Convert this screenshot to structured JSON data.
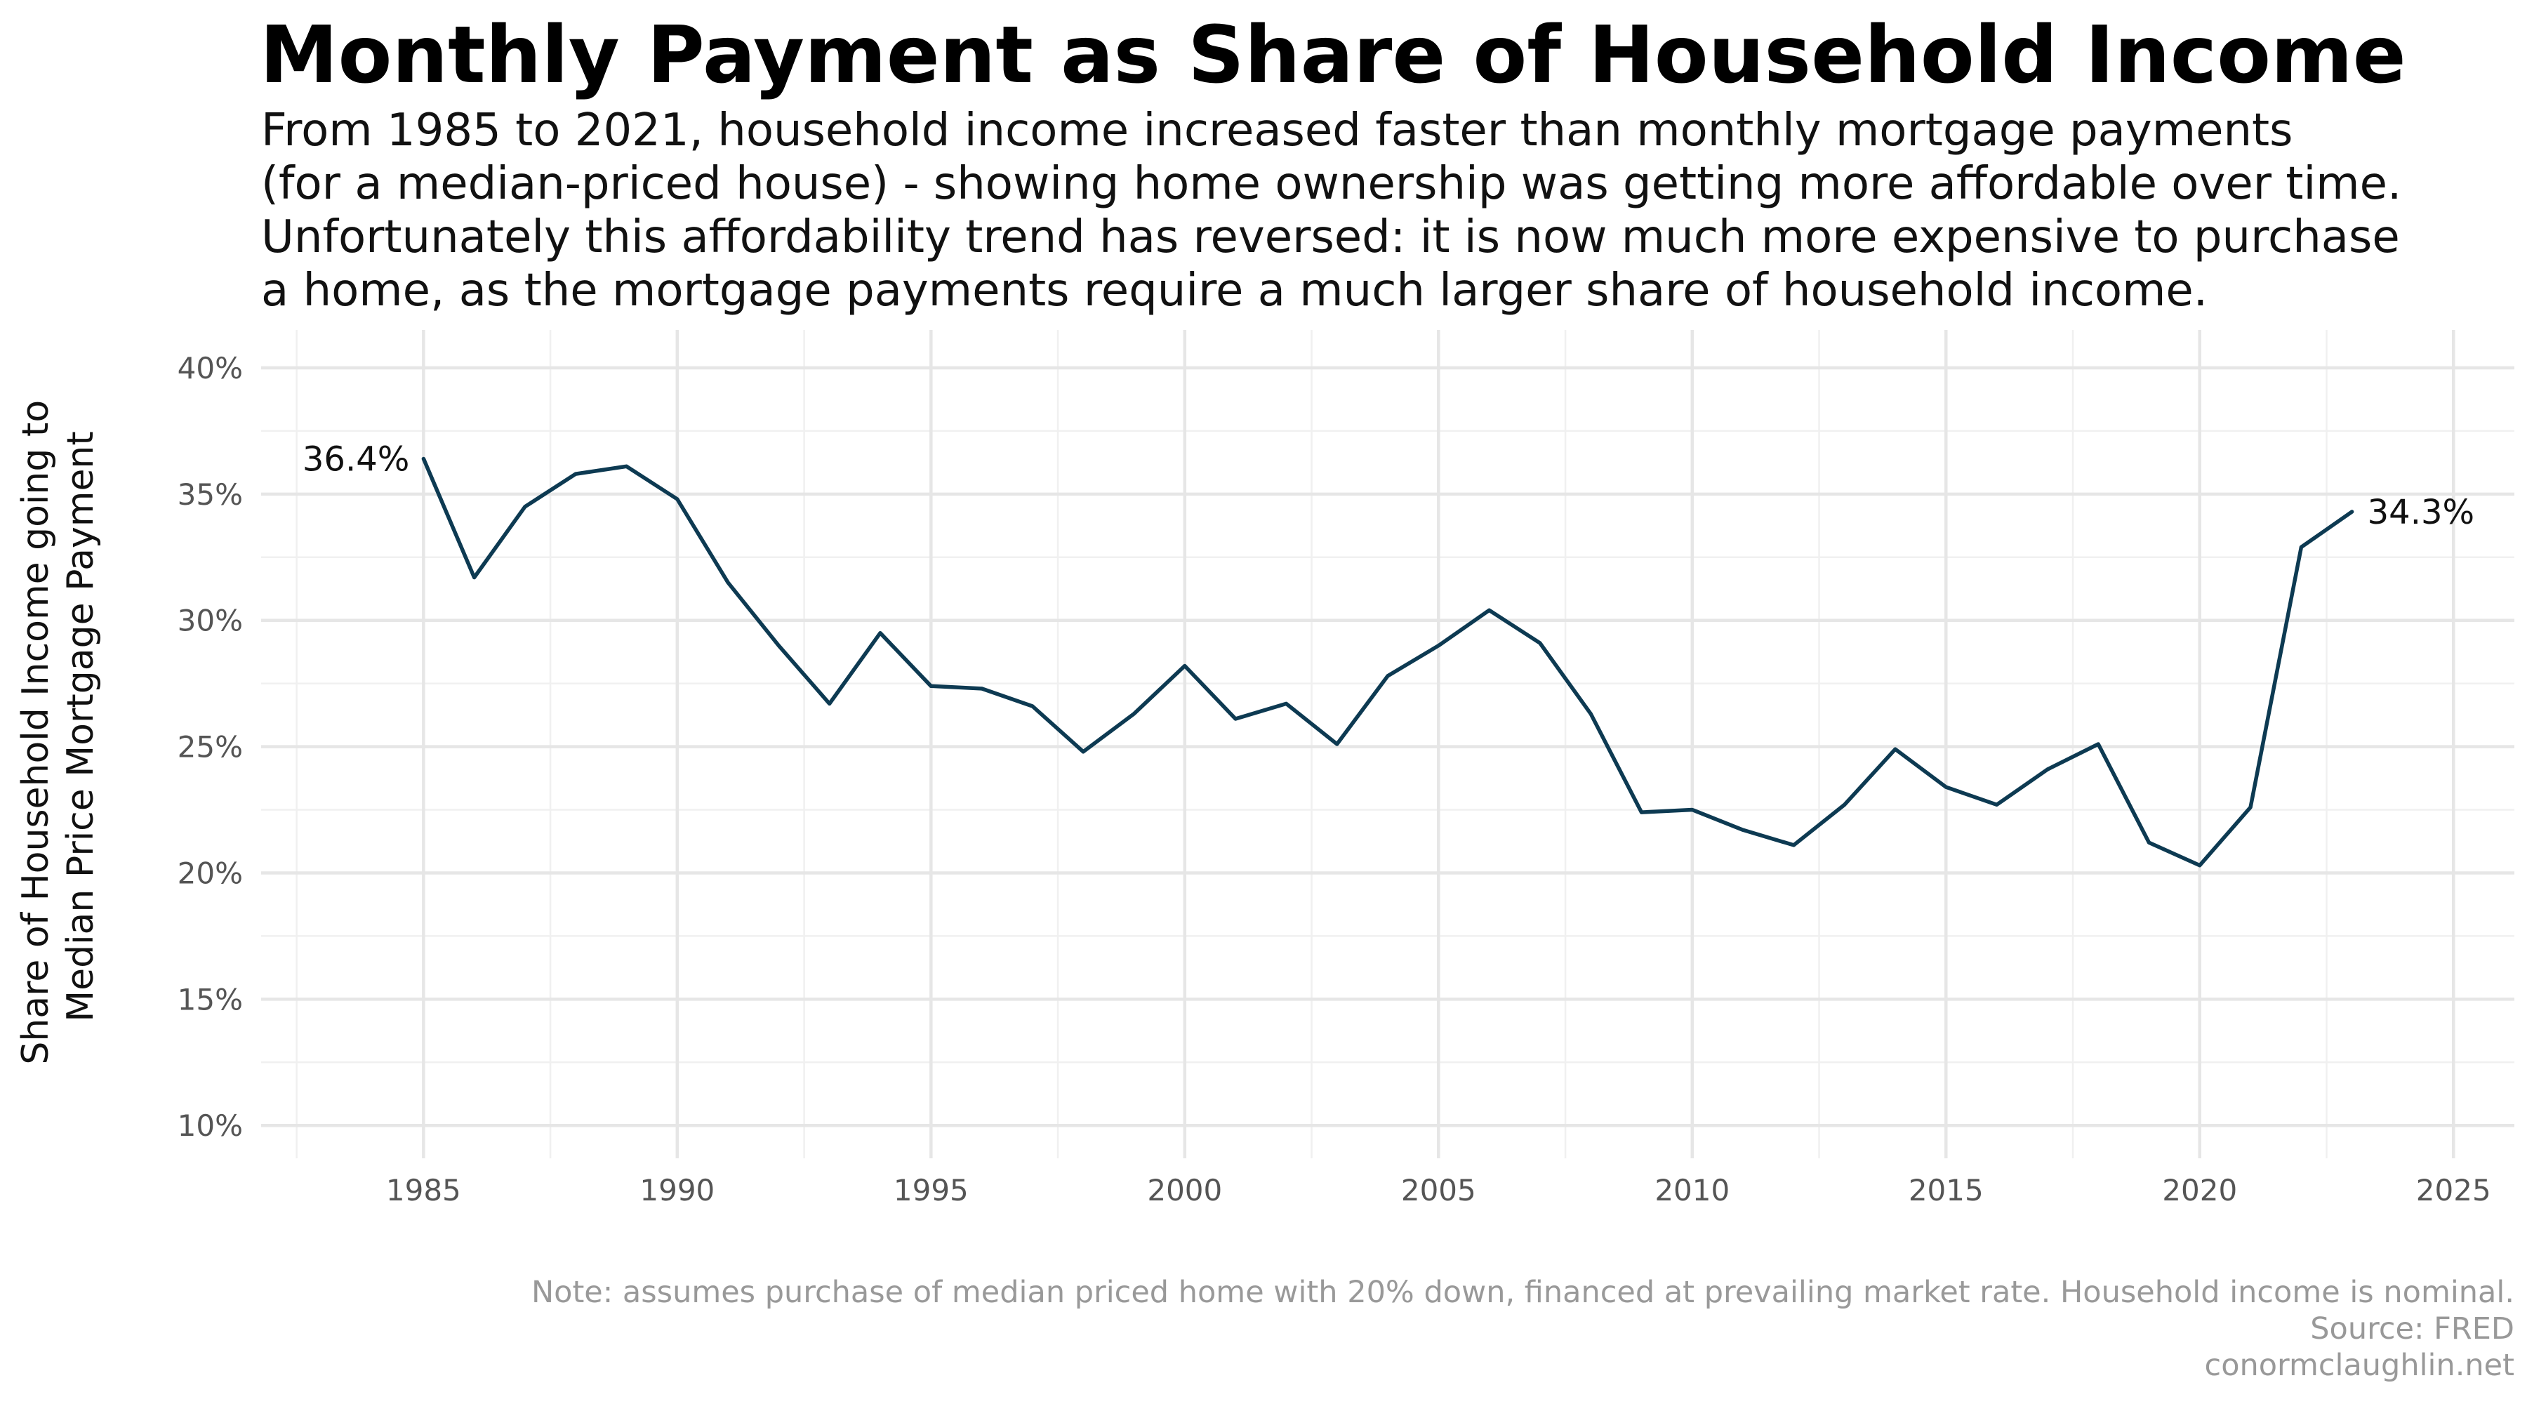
{
  "chart_data": {
    "type": "line",
    "title": "Monthly Payment as Share of Household Income",
    "subtitle_lines": [
      "From 1985 to 2021, household income increased faster than monthly mortgage payments",
      "(for a median-priced house) - showing home ownership was getting more affordable over time.",
      "Unfortunately this affordability trend has reversed: it is now much more expensive to purchase",
      "a home, as the mortgage payments require a much larger share of household income."
    ],
    "ylabel_lines": [
      "Share of Household Income going to",
      "Median Price Mortgage Payment"
    ],
    "xlabel": "",
    "xlim": [
      1981.8,
      2026.2
    ],
    "ylim": [
      8.7,
      41.5
    ],
    "x_ticks": [
      1985,
      1990,
      1995,
      2000,
      2005,
      2010,
      2015,
      2020,
      2025
    ],
    "y_ticks": [
      10,
      15,
      20,
      25,
      30,
      35,
      40
    ],
    "y_tick_labels": [
      "10%",
      "15%",
      "20%",
      "25%",
      "30%",
      "35%",
      "40%"
    ],
    "grid": true,
    "line_color": "#0d3a52",
    "x": [
      1985,
      1986,
      1987,
      1988,
      1989,
      1990,
      1991,
      1992,
      1993,
      1994,
      1995,
      1996,
      1997,
      1998,
      1999,
      2000,
      2001,
      2002,
      2003,
      2004,
      2005,
      2006,
      2007,
      2008,
      2009,
      2010,
      2011,
      2012,
      2013,
      2014,
      2015,
      2016,
      2017,
      2018,
      2019,
      2020,
      2021,
      2022,
      2023
    ],
    "values": [
      36.4,
      31.7,
      34.5,
      35.8,
      36.1,
      34.8,
      31.5,
      29.0,
      26.7,
      29.5,
      27.4,
      27.3,
      26.6,
      24.8,
      26.3,
      28.2,
      26.1,
      26.7,
      25.1,
      27.8,
      29.0,
      30.4,
      29.1,
      26.3,
      22.4,
      22.5,
      21.7,
      21.1,
      22.7,
      24.9,
      23.4,
      22.7,
      24.1,
      25.1,
      21.2,
      20.3,
      22.6,
      32.9,
      34.3
    ],
    "annotations": [
      {
        "x": 1985,
        "y": 36.4,
        "label": "36.4%"
      },
      {
        "x": 2023,
        "y": 34.3,
        "label": "34.3%"
      }
    ],
    "caption_lines": [
      "Note: assumes purchase of median priced home with 20% down, financed at prevailing market rate. Household income is nominal.",
      "Source: FRED",
      "conormclaughlin.net"
    ]
  }
}
